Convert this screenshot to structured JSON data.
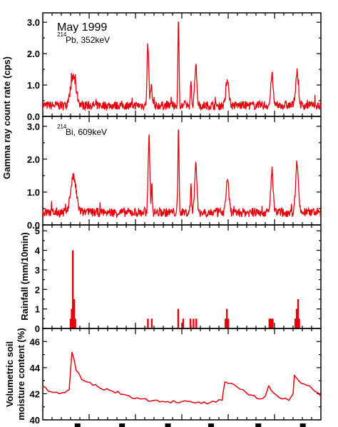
{
  "figure": {
    "date_label": "May 1999",
    "colors": {
      "series": "#e8000d",
      "axes": "#000000"
    }
  },
  "chart_data": [
    {
      "type": "line",
      "panel": "pb214",
      "annotation": {
        "isotope_mass": "214",
        "isotope_text": "Pb, 352keV"
      },
      "ylim": [
        0,
        3.3
      ],
      "yticks": [
        0.0,
        1.0,
        2.0,
        3.0
      ],
      "tick_labels": [
        "0.0",
        "1.0",
        "2.0",
        "3.0"
      ],
      "baseline": 0.35,
      "peaks": [
        {
          "x": 0.11,
          "y": 1.25,
          "w": 0.01
        },
        {
          "x": 0.378,
          "y": 2.3,
          "w": 0.003
        },
        {
          "x": 0.39,
          "y": 0.95,
          "w": 0.003
        },
        {
          "x": 0.488,
          "y": 3.08,
          "w": 0.002
        },
        {
          "x": 0.533,
          "y": 1.05,
          "w": 0.002
        },
        {
          "x": 0.55,
          "y": 1.6,
          "w": 0.004
        },
        {
          "x": 0.664,
          "y": 1.2,
          "w": 0.005
        },
        {
          "x": 0.824,
          "y": 1.35,
          "w": 0.004
        },
        {
          "x": 0.914,
          "y": 1.4,
          "w": 0.005
        }
      ]
    },
    {
      "type": "line",
      "panel": "bi214",
      "annotation": {
        "isotope_mass": "214",
        "isotope_text": "Bi, 609keV"
      },
      "ylim": [
        0,
        3.3
      ],
      "yticks": [
        0.0,
        1.0,
        2.0,
        3.0
      ],
      "tick_labels": [
        "0.0",
        "1.0",
        "2.0",
        "3.0"
      ],
      "baseline": 0.38,
      "peaks": [
        {
          "x": 0.11,
          "y": 1.45,
          "w": 0.01
        },
        {
          "x": 0.382,
          "y": 2.75,
          "w": 0.003
        },
        {
          "x": 0.392,
          "y": 1.2,
          "w": 0.002
        },
        {
          "x": 0.488,
          "y": 2.95,
          "w": 0.002
        },
        {
          "x": 0.533,
          "y": 1.25,
          "w": 0.002
        },
        {
          "x": 0.55,
          "y": 1.9,
          "w": 0.004
        },
        {
          "x": 0.664,
          "y": 1.4,
          "w": 0.005
        },
        {
          "x": 0.824,
          "y": 1.7,
          "w": 0.004
        },
        {
          "x": 0.914,
          "y": 1.9,
          "w": 0.005
        }
      ]
    },
    {
      "type": "bar",
      "panel": "rainfall",
      "ylabel": "Rainfall (mm/10min)",
      "ylim": [
        0,
        5.3
      ],
      "yticks": [
        0,
        1,
        2,
        3,
        4,
        5
      ],
      "tick_labels": [
        "0",
        "1",
        "2",
        "3",
        "4",
        "5"
      ],
      "bars": [
        {
          "x": 0.1,
          "y": 0.5
        },
        {
          "x": 0.104,
          "y": 1.0
        },
        {
          "x": 0.108,
          "y": 4.0
        },
        {
          "x": 0.113,
          "y": 1.5
        },
        {
          "x": 0.117,
          "y": 0.5
        },
        {
          "x": 0.378,
          "y": 0.5
        },
        {
          "x": 0.392,
          "y": 0.5
        },
        {
          "x": 0.487,
          "y": 1.0
        },
        {
          "x": 0.505,
          "y": 0.5
        },
        {
          "x": 0.531,
          "y": 0.5
        },
        {
          "x": 0.542,
          "y": 0.5
        },
        {
          "x": 0.552,
          "y": 0.5
        },
        {
          "x": 0.657,
          "y": 0.5
        },
        {
          "x": 0.662,
          "y": 1.0
        },
        {
          "x": 0.667,
          "y": 0.5
        },
        {
          "x": 0.815,
          "y": 0.5
        },
        {
          "x": 0.819,
          "y": 0.5
        },
        {
          "x": 0.823,
          "y": 0.5
        },
        {
          "x": 0.827,
          "y": 0.5
        },
        {
          "x": 0.908,
          "y": 0.5
        },
        {
          "x": 0.913,
          "y": 1.0
        },
        {
          "x": 0.918,
          "y": 1.5
        },
        {
          "x": 0.922,
          "y": 0.5
        }
      ]
    },
    {
      "type": "line",
      "panel": "moisture",
      "ylabel_line1": "Volumetric soil",
      "ylabel_line2": "moisture content (%)",
      "ylim": [
        40,
        47
      ],
      "yticks": [
        40,
        42,
        44,
        46
      ],
      "tick_labels": [
        "40",
        "42",
        "44",
        "46"
      ],
      "x": [
        0.0,
        0.02,
        0.04,
        0.06,
        0.08,
        0.095,
        0.105,
        0.12,
        0.14,
        0.16,
        0.2,
        0.25,
        0.3,
        0.35,
        0.4,
        0.45,
        0.5,
        0.55,
        0.6,
        0.645,
        0.655,
        0.665,
        0.7,
        0.75,
        0.78,
        0.8,
        0.812,
        0.82,
        0.84,
        0.86,
        0.885,
        0.9,
        0.905,
        0.92,
        0.96,
        1.0
      ],
      "y": [
        42.6,
        42.2,
        42.1,
        42.0,
        42.1,
        42.3,
        45.2,
        43.8,
        43.1,
        42.9,
        42.5,
        42.2,
        41.9,
        41.6,
        41.5,
        41.4,
        41.4,
        41.3,
        41.3,
        41.5,
        42.9,
        42.8,
        42.5,
        41.9,
        41.6,
        41.8,
        42.6,
        42.3,
        41.9,
        41.6,
        41.5,
        42.0,
        43.4,
        43.0,
        42.6,
        41.8
      ]
    }
  ],
  "shared": {
    "ylabel_gamma": "Gamma ray count rate (cps)"
  }
}
